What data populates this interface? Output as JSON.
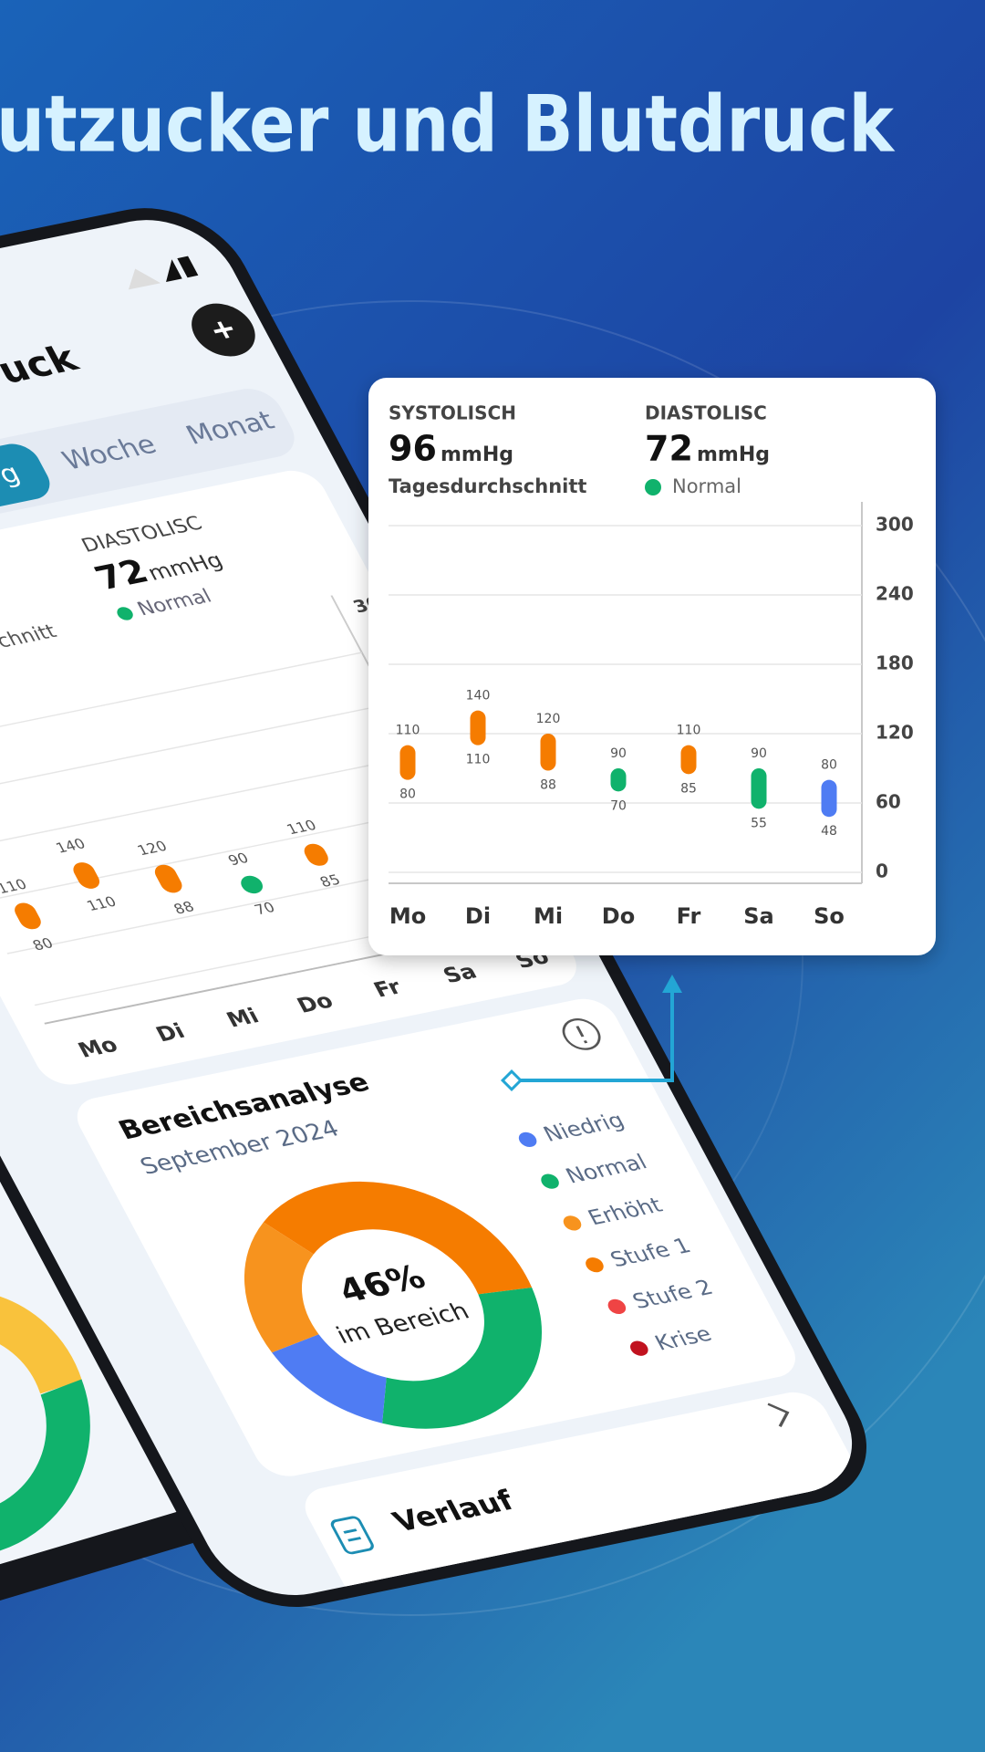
{
  "headline": "utzucker und Blutdruck",
  "phone": {
    "title_fragment": "ruck",
    "tabs": [
      "g",
      "Woche",
      "Monat"
    ],
    "caption_fragment": "chnitt"
  },
  "card": {
    "systolic_label": "SYSTOLISCH",
    "systolic_value": 96,
    "systolic_unit": "mmHg",
    "caption": "Tagesdurchschnitt",
    "diastolic_label": "DIASTOLISC",
    "diastolic_value": 72,
    "diastolic_unit": "mmHg",
    "status": "Normal",
    "status_color": "#10b26c"
  },
  "chart_data": {
    "type": "range",
    "categories": [
      "Mo",
      "Di",
      "Mi",
      "Do",
      "Fr",
      "Sa",
      "So"
    ],
    "high": [
      110,
      140,
      120,
      90,
      110,
      90,
      80
    ],
    "low": [
      80,
      110,
      88,
      70,
      85,
      55,
      48
    ],
    "colors": [
      "#f57c00",
      "#f57c00",
      "#f57c00",
      "#10b26c",
      "#f57c00",
      "#10b26c",
      "#4f7cf3"
    ],
    "ylim": [
      0,
      300
    ],
    "yticks": [
      0,
      60,
      120,
      180,
      240,
      300
    ],
    "grid": true
  },
  "range_analysis": {
    "title": "Bereichsanalyse",
    "subtitle": "September 2024",
    "center_value": "46%",
    "center_caption": "im Bereich",
    "legend": [
      {
        "name": "Niedrig",
        "color": "#4f7cf3",
        "value": 14
      },
      {
        "name": "Normal",
        "color": "#10b26c",
        "value": 32
      },
      {
        "name": "Erhöht",
        "color": "#f7931e",
        "value": 18
      },
      {
        "name": "Stufe 1",
        "color": "#f57c00",
        "value": 36
      },
      {
        "name": "Stufe 2",
        "color": "#ef4444",
        "value": 0
      },
      {
        "name": "Krise",
        "color": "#c1121f",
        "value": 0
      }
    ]
  },
  "history": {
    "title": "Verlauf"
  }
}
